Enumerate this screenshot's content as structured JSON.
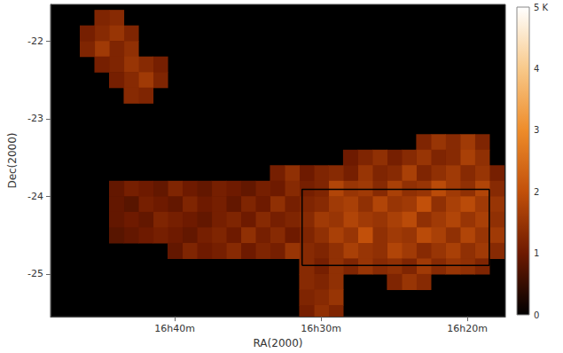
{
  "chart_data": {
    "type": "heatmap",
    "x_label": "RA(2000)",
    "y_label": "Dec(2000)",
    "xlim": [
      48.5,
      17.4
    ],
    "ylim": [
      -25.55,
      -21.53
    ],
    "xticks": [
      {
        "value": 40,
        "label": "16h40m"
      },
      {
        "value": 30,
        "label": "16h30m"
      },
      {
        "value": 20,
        "label": "16h20m"
      }
    ],
    "yticks": [
      -25,
      -24,
      -23,
      -22
    ],
    "grid": false,
    "cell_size": [
      1,
      0.2
    ],
    "cells": [
      [
        44,
        -21.7,
        1.3
      ],
      [
        45,
        -21.7,
        1.2
      ],
      [
        43,
        -21.9,
        1.2
      ],
      [
        44,
        -21.9,
        1.5
      ],
      [
        45,
        -21.9,
        1.3
      ],
      [
        46,
        -21.9,
        1.1
      ],
      [
        43,
        -22.1,
        1.4
      ],
      [
        44,
        -22.1,
        1.2
      ],
      [
        45,
        -22.1,
        1.6
      ],
      [
        46,
        -22.1,
        1.2
      ],
      [
        41,
        -22.3,
        1.1
      ],
      [
        42,
        -22.3,
        1.3
      ],
      [
        43,
        -22.3,
        1.5
      ],
      [
        44,
        -22.3,
        1.2
      ],
      [
        45,
        -22.3,
        1.1
      ],
      [
        41,
        -22.5,
        1.2
      ],
      [
        42,
        -22.5,
        1.6
      ],
      [
        43,
        -22.5,
        1.3
      ],
      [
        44,
        -22.5,
        1.1
      ],
      [
        42,
        -22.7,
        1.2
      ],
      [
        43,
        -22.7,
        1.3
      ],
      [
        19,
        -23.3,
        1.2
      ],
      [
        20,
        -23.3,
        1.6
      ],
      [
        21,
        -23.3,
        1.3
      ],
      [
        22,
        -23.3,
        1.5
      ],
      [
        23,
        -23.3,
        1.2
      ],
      [
        19,
        -23.5,
        1.4
      ],
      [
        20,
        -23.5,
        1.7
      ],
      [
        21,
        -23.5,
        1.3
      ],
      [
        22,
        -23.5,
        1.2
      ],
      [
        23,
        -23.5,
        1.5
      ],
      [
        24,
        -23.5,
        1.3
      ],
      [
        25,
        -23.5,
        1.1
      ],
      [
        26,
        -23.5,
        1.4
      ],
      [
        27,
        -23.5,
        1.2
      ],
      [
        28,
        -23.5,
        1.0
      ],
      [
        18,
        -23.7,
        1.1
      ],
      [
        19,
        -23.7,
        1.5
      ],
      [
        20,
        -23.7,
        1.3
      ],
      [
        21,
        -23.7,
        1.6
      ],
      [
        22,
        -23.7,
        1.4
      ],
      [
        23,
        -23.7,
        1.2
      ],
      [
        24,
        -23.7,
        1.7
      ],
      [
        25,
        -23.7,
        1.3
      ],
      [
        26,
        -23.7,
        1.2
      ],
      [
        27,
        -23.7,
        1.5
      ],
      [
        28,
        -23.7,
        1.1
      ],
      [
        29,
        -23.7,
        1.3
      ],
      [
        30,
        -23.7,
        1.2
      ],
      [
        31,
        -23.7,
        1.0
      ],
      [
        32,
        -23.7,
        1.4
      ],
      [
        33,
        -23.7,
        1.1
      ],
      [
        18,
        -23.9,
        1.3
      ],
      [
        19,
        -23.9,
        1.8
      ],
      [
        20,
        -23.9,
        1.4
      ],
      [
        21,
        -23.9,
        1.6
      ],
      [
        22,
        -23.9,
        1.9
      ],
      [
        23,
        -23.9,
        1.5
      ],
      [
        24,
        -23.9,
        1.4
      ],
      [
        25,
        -23.9,
        1.7
      ],
      [
        26,
        -23.9,
        1.3
      ],
      [
        27,
        -23.9,
        1.6
      ],
      [
        28,
        -23.9,
        1.5
      ],
      [
        29,
        -23.9,
        1.8
      ],
      [
        30,
        -23.9,
        1.2
      ],
      [
        31,
        -23.9,
        1.1
      ],
      [
        32,
        -23.9,
        1.3
      ],
      [
        33,
        -23.9,
        1.0
      ],
      [
        34,
        -23.9,
        1.1
      ],
      [
        35,
        -23.9,
        0.9
      ],
      [
        36,
        -23.9,
        1.0
      ],
      [
        37,
        -23.9,
        1.1
      ],
      [
        38,
        -23.9,
        0.9
      ],
      [
        39,
        -23.9,
        1.0
      ],
      [
        40,
        -23.9,
        1.2
      ],
      [
        41,
        -23.9,
        0.9
      ],
      [
        42,
        -23.9,
        1.0
      ],
      [
        43,
        -23.9,
        1.1
      ],
      [
        44,
        -23.9,
        0.9
      ],
      [
        18,
        -24.1,
        1.5
      ],
      [
        19,
        -24.1,
        1.6
      ],
      [
        20,
        -24.1,
        1.9
      ],
      [
        21,
        -24.1,
        1.7
      ],
      [
        22,
        -24.1,
        1.4
      ],
      [
        23,
        -24.1,
        2.0
      ],
      [
        24,
        -24.1,
        1.6
      ],
      [
        25,
        -24.1,
        1.5
      ],
      [
        26,
        -24.1,
        1.8
      ],
      [
        27,
        -24.1,
        1.4
      ],
      [
        28,
        -24.1,
        1.7
      ],
      [
        29,
        -24.1,
        1.6
      ],
      [
        30,
        -24.1,
        1.3
      ],
      [
        31,
        -24.1,
        1.2
      ],
      [
        32,
        -24.1,
        1.1
      ],
      [
        33,
        -24.1,
        1.4
      ],
      [
        34,
        -24.1,
        1.0
      ],
      [
        35,
        -24.1,
        1.2
      ],
      [
        36,
        -24.1,
        0.9
      ],
      [
        37,
        -24.1,
        1.1
      ],
      [
        38,
        -24.1,
        1.0
      ],
      [
        39,
        -24.1,
        1.2
      ],
      [
        40,
        -24.1,
        0.9
      ],
      [
        41,
        -24.1,
        1.0
      ],
      [
        42,
        -24.1,
        1.1
      ],
      [
        43,
        -24.1,
        0.8
      ],
      [
        44,
        -24.1,
        0.9
      ],
      [
        18,
        -24.3,
        1.4
      ],
      [
        19,
        -24.3,
        1.7
      ],
      [
        20,
        -24.3,
        1.5
      ],
      [
        21,
        -24.3,
        1.8
      ],
      [
        22,
        -24.3,
        1.6
      ],
      [
        23,
        -24.3,
        1.4
      ],
      [
        24,
        -24.3,
        1.9
      ],
      [
        25,
        -24.3,
        1.7
      ],
      [
        26,
        -24.3,
        1.5
      ],
      [
        27,
        -24.3,
        1.6
      ],
      [
        28,
        -24.3,
        1.8
      ],
      [
        29,
        -24.3,
        1.5
      ],
      [
        30,
        -24.3,
        1.6
      ],
      [
        31,
        -24.3,
        1.3
      ],
      [
        32,
        -24.3,
        1.2
      ],
      [
        33,
        -24.3,
        1.1
      ],
      [
        34,
        -24.3,
        1.3
      ],
      [
        35,
        -24.3,
        1.0
      ],
      [
        36,
        -24.3,
        1.2
      ],
      [
        37,
        -24.3,
        1.1
      ],
      [
        38,
        -24.3,
        0.9
      ],
      [
        39,
        -24.3,
        1.0
      ],
      [
        40,
        -24.3,
        1.1
      ],
      [
        41,
        -24.3,
        1.2
      ],
      [
        42,
        -24.3,
        0.9
      ],
      [
        43,
        -24.3,
        1.0
      ],
      [
        44,
        -24.3,
        0.9
      ],
      [
        18,
        -24.5,
        1.6
      ],
      [
        19,
        -24.5,
        1.5
      ],
      [
        20,
        -24.5,
        1.8
      ],
      [
        21,
        -24.5,
        1.4
      ],
      [
        22,
        -24.5,
        1.7
      ],
      [
        23,
        -24.5,
        1.9
      ],
      [
        24,
        -24.5,
        1.5
      ],
      [
        25,
        -24.5,
        1.6
      ],
      [
        26,
        -24.5,
        1.4
      ],
      [
        27,
        -24.5,
        2.0
      ],
      [
        28,
        -24.5,
        1.5
      ],
      [
        29,
        -24.5,
        1.7
      ],
      [
        30,
        -24.5,
        1.4
      ],
      [
        31,
        -24.5,
        1.2
      ],
      [
        32,
        -24.5,
        1.0
      ],
      [
        33,
        -24.5,
        1.3
      ],
      [
        34,
        -24.5,
        1.1
      ],
      [
        35,
        -24.5,
        1.4
      ],
      [
        36,
        -24.5,
        1.0
      ],
      [
        37,
        -24.5,
        1.2
      ],
      [
        38,
        -24.5,
        1.1
      ],
      [
        39,
        -24.5,
        0.9
      ],
      [
        40,
        -24.5,
        1.0
      ],
      [
        41,
        -24.5,
        1.1
      ],
      [
        42,
        -24.5,
        1.0
      ],
      [
        43,
        -24.5,
        0.9
      ],
      [
        44,
        -24.5,
        0.8
      ],
      [
        18,
        -24.7,
        1.3
      ],
      [
        19,
        -24.7,
        1.6
      ],
      [
        20,
        -24.7,
        1.4
      ],
      [
        21,
        -24.7,
        1.7
      ],
      [
        22,
        -24.7,
        1.5
      ],
      [
        23,
        -24.7,
        1.3
      ],
      [
        24,
        -24.7,
        1.6
      ],
      [
        25,
        -24.7,
        1.8
      ],
      [
        26,
        -24.7,
        1.4
      ],
      [
        27,
        -24.7,
        1.5
      ],
      [
        28,
        -24.7,
        1.7
      ],
      [
        29,
        -24.7,
        1.4
      ],
      [
        30,
        -24.7,
        1.2
      ],
      [
        31,
        -24.7,
        1.3
      ],
      [
        32,
        -24.7,
        1.5
      ],
      [
        33,
        -24.7,
        1.1
      ],
      [
        34,
        -24.7,
        1.2
      ],
      [
        35,
        -24.7,
        1.0
      ],
      [
        36,
        -24.7,
        1.3
      ],
      [
        37,
        -24.7,
        1.1
      ],
      [
        38,
        -24.7,
        1.0
      ],
      [
        39,
        -24.7,
        1.2
      ],
      [
        40,
        -24.7,
        0.9
      ],
      [
        19,
        -24.9,
        1.2
      ],
      [
        20,
        -24.9,
        1.4
      ],
      [
        21,
        -24.9,
        1.5
      ],
      [
        22,
        -24.9,
        1.3
      ],
      [
        23,
        -24.9,
        1.6
      ],
      [
        24,
        -24.9,
        1.2
      ],
      [
        25,
        -24.9,
        1.4
      ],
      [
        26,
        -24.9,
        1.3
      ],
      [
        27,
        -24.9,
        1.5
      ],
      [
        28,
        -24.9,
        1.2
      ],
      [
        29,
        -24.9,
        1.4
      ],
      [
        30,
        -24.9,
        1.1
      ],
      [
        31,
        -24.9,
        1.3
      ],
      [
        23,
        -25.1,
        1.3
      ],
      [
        24,
        -25.1,
        1.5
      ],
      [
        25,
        -25.1,
        1.2
      ],
      [
        29,
        -25.1,
        1.4
      ],
      [
        30,
        -25.1,
        1.2
      ],
      [
        31,
        -25.1,
        1.3
      ],
      [
        29,
        -25.3,
        1.5
      ],
      [
        30,
        -25.3,
        1.3
      ],
      [
        31,
        -25.3,
        1.2
      ],
      [
        29,
        -25.5,
        1.2
      ],
      [
        30,
        -25.5,
        1.4
      ],
      [
        31,
        -25.5,
        1.1
      ]
    ],
    "colorbar": {
      "range": [
        0,
        5
      ],
      "ticks": [
        0,
        1,
        2,
        3,
        4,
        {
          "value": 5,
          "label": "5 K"
        }
      ]
    },
    "box": {
      "x": [
        31.3,
        18.5
      ],
      "y": [
        -24.89,
        -23.91
      ],
      "color": "#000000"
    }
  }
}
